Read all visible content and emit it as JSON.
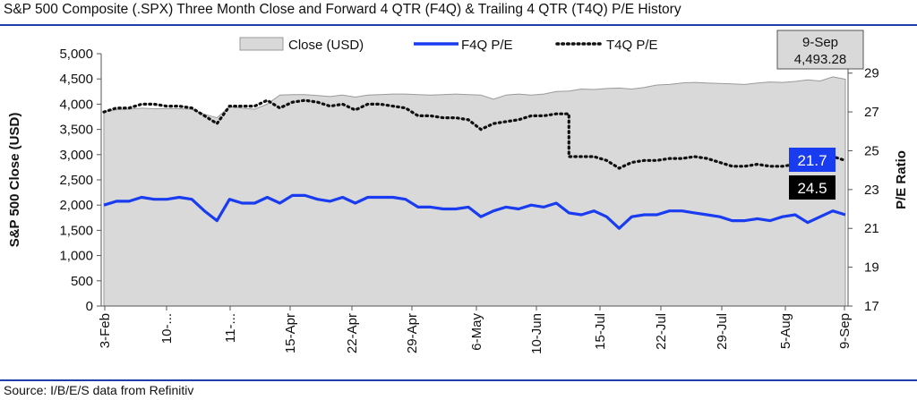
{
  "title": "S&P 500 Composite (.SPX) Three Month Close and Forward 4 QTR (F4Q) & Trailing 4 QTR (T4Q) P/E History",
  "source": "Source: I/B/E/S data from Refinitiv",
  "callout": {
    "date": "9-Sep",
    "value": "4,493.28"
  },
  "colors": {
    "area": "#d9d9d9",
    "area_edge": "#9a9a9a",
    "f4q": "#1a3cf0",
    "t4q": "#111111",
    "rule": "#1f3ea8"
  },
  "chart_data": {
    "type": "area",
    "title": "S&P 500 Composite (.SPX) Three Month Close and Forward 4 QTR (F4Q) & Trailing 4 QTR (T4Q) P/E History",
    "legend": {
      "placement": "top",
      "entries": [
        "Close (USD)",
        "F4Q P/E",
        "T4Q P/E"
      ]
    },
    "x_tick_labels": [
      "3-Feb",
      "10-...",
      "11-...",
      "15-Apr",
      "22-Apr",
      "29-Apr",
      "6-May",
      "10-Jun",
      "15-Jul",
      "22-Jul",
      "29-Jul",
      "5-Aug",
      "9-Sep"
    ],
    "y_left": {
      "label": "S&P 500 Close (USD)",
      "range": [
        0,
        5000
      ],
      "ticks": [
        "0",
        "500",
        "1,000",
        "1,500",
        "2,000",
        "2,500",
        "3,000",
        "3,500",
        "4,000",
        "4,500",
        "5,000"
      ]
    },
    "y_right": {
      "label": "P/E Ratio",
      "range": [
        17,
        30
      ],
      "ticks": [
        "17",
        "19",
        "21",
        "23",
        "25",
        "27",
        "29"
      ]
    },
    "grid": false,
    "series": [
      {
        "name": "Close (USD)",
        "axis": "left",
        "values": [
          3850,
          3890,
          3900,
          3920,
          3910,
          3915,
          3910,
          3900,
          3800,
          3730,
          3950,
          3920,
          3900,
          4000,
          4180,
          4190,
          4190,
          4170,
          4150,
          4180,
          4140,
          4180,
          4190,
          4200,
          4200,
          4190,
          4180,
          4190,
          4200,
          4190,
          4180,
          4100,
          4180,
          4200,
          4180,
          4200,
          4250,
          4260,
          4300,
          4290,
          4310,
          4320,
          4300,
          4330,
          4380,
          4390,
          4420,
          4430,
          4420,
          4410,
          4400,
          4390,
          4420,
          4440,
          4430,
          4450,
          4480,
          4460,
          4540,
          4493
        ]
      },
      {
        "name": "F4Q P/E",
        "axis": "right",
        "values": [
          22.2,
          22.4,
          22.4,
          22.6,
          22.5,
          22.5,
          22.6,
          22.5,
          21.9,
          21.4,
          22.5,
          22.3,
          22.3,
          22.6,
          22.3,
          22.7,
          22.7,
          22.5,
          22.4,
          22.6,
          22.3,
          22.6,
          22.6,
          22.6,
          22.5,
          22.1,
          22.1,
          22.0,
          22.0,
          22.1,
          21.6,
          21.9,
          22.1,
          22.0,
          22.2,
          22.1,
          22.3,
          21.8,
          21.7,
          21.9,
          21.6,
          21.0,
          21.6,
          21.7,
          21.7,
          21.9,
          21.9,
          21.8,
          21.7,
          21.6,
          21.4,
          21.4,
          21.5,
          21.4,
          21.6,
          21.7,
          21.3,
          21.6,
          21.9,
          21.7
        ]
      },
      {
        "name": "T4Q P/E",
        "axis": "right",
        "values": [
          27.0,
          27.2,
          27.2,
          27.4,
          27.4,
          27.3,
          27.3,
          27.2,
          26.8,
          26.4,
          27.3,
          27.3,
          27.3,
          27.6,
          27.2,
          27.5,
          27.6,
          27.5,
          27.3,
          27.4,
          27.1,
          27.4,
          27.4,
          27.3,
          27.2,
          26.8,
          26.8,
          26.7,
          26.7,
          26.6,
          26.1,
          26.4,
          26.5,
          26.6,
          26.8,
          26.8,
          26.9,
          24.7,
          24.7,
          24.7,
          24.5,
          24.1,
          24.4,
          24.5,
          24.5,
          24.6,
          24.6,
          24.7,
          24.6,
          24.4,
          24.2,
          24.2,
          24.3,
          24.2,
          24.2,
          24.3,
          24.3,
          24.3,
          24.7,
          24.5
        ]
      }
    ],
    "labels": {
      "f4q_last": "21.7",
      "t4q_last": "24.5"
    }
  }
}
